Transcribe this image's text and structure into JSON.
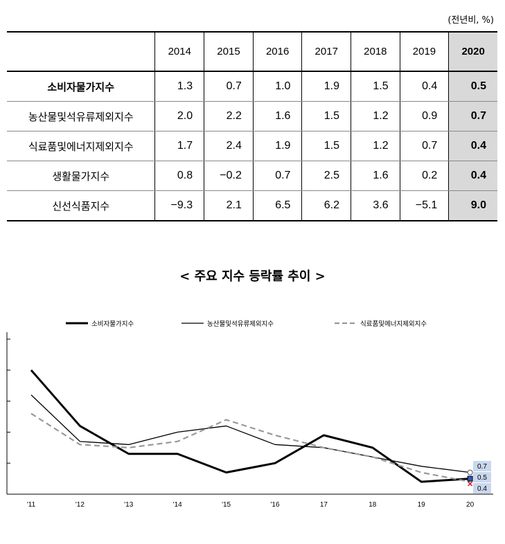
{
  "table": {
    "unit": "(전년비, %)",
    "years": [
      "2014",
      "2015",
      "2016",
      "2017",
      "2018",
      "2019",
      "2020"
    ],
    "rows": [
      {
        "label": "소비자물가지수",
        "values": [
          "1.3",
          "0.7",
          "1.0",
          "1.9",
          "1.5",
          "0.4",
          "0.5"
        ]
      },
      {
        "label": "농산물및석유류제외지수",
        "values": [
          "2.0",
          "2.2",
          "1.6",
          "1.5",
          "1.2",
          "0.9",
          "0.7"
        ]
      },
      {
        "label": "식료품및에너지제외지수",
        "values": [
          "1.7",
          "2.4",
          "1.9",
          "1.5",
          "1.2",
          "0.7",
          "0.4"
        ]
      },
      {
        "label": "생활물가지수",
        "values": [
          "0.8",
          "−0.2",
          "0.7",
          "2.5",
          "1.6",
          "0.2",
          "0.4"
        ]
      },
      {
        "label": "신선식품지수",
        "values": [
          "−9.3",
          "2.1",
          "6.5",
          "6.2",
          "3.6",
          "−5.1",
          "9.0"
        ]
      }
    ]
  },
  "chart_data": {
    "type": "line",
    "title": "< 주요 지수 등락률 추이 >",
    "categories": [
      "'11",
      "'12",
      "'13",
      "'14",
      "'15",
      "'16",
      "17",
      "18",
      "19",
      "20"
    ],
    "ylim": [
      0,
      5
    ],
    "series": [
      {
        "name": "소비자물가지수",
        "values": [
          4.0,
          2.2,
          1.3,
          1.3,
          0.7,
          1.0,
          1.9,
          1.5,
          0.4,
          0.5
        ],
        "color": "#000000",
        "style": "thick"
      },
      {
        "name": "농산물및석유류제외지수",
        "values": [
          3.2,
          1.7,
          1.6,
          2.0,
          2.2,
          1.6,
          1.5,
          1.2,
          0.9,
          0.7
        ],
        "color": "#000000",
        "style": "thin"
      },
      {
        "name": "식료품및에너지제외지수",
        "values": [
          2.6,
          1.6,
          1.5,
          1.7,
          2.4,
          1.9,
          1.5,
          1.2,
          0.7,
          0.4
        ],
        "color": "#999999",
        "style": "dashed"
      }
    ],
    "end_labels": [
      "0.7",
      "0.5",
      "0.4"
    ],
    "legend_position": "top"
  }
}
